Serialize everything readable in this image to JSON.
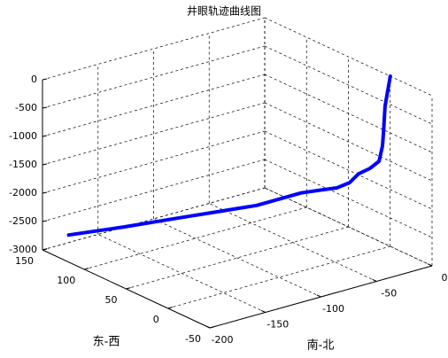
{
  "chart_data": {
    "type": "line3d",
    "title": "井眼轨迹曲线图",
    "xlabel": "东-西",
    "ylabel": "南-北",
    "x": [
      0,
      2.3,
      3,
      3.5,
      5,
      9,
      14,
      18,
      24,
      30,
      40,
      60,
      95,
      119,
      144
    ],
    "y": [
      0,
      -2.9,
      -3.8,
      -4.3,
      -6.3,
      -11.4,
      -18,
      -23,
      -30,
      -38,
      -50,
      -75,
      -120,
      -150,
      -181
    ],
    "z": [
      0,
      -530,
      -1000,
      -1230,
      -1500,
      -1625,
      -1720,
      -1875,
      -1970,
      -2000,
      -2060,
      -2280,
      -2500,
      -2655,
      -2800
    ],
    "color": "#0000ff",
    "xlim": [
      -50,
      150
    ],
    "xticks": [
      -50,
      0,
      50,
      100,
      150
    ],
    "ylim": [
      -200,
      0
    ],
    "yticks": [
      -200,
      -150,
      -100,
      -50,
      0
    ],
    "zlim": [
      -3000,
      0
    ],
    "zticks": [
      -3000,
      -2500,
      -2000,
      -1500,
      -1000,
      -500,
      0
    ],
    "grid": true
  }
}
